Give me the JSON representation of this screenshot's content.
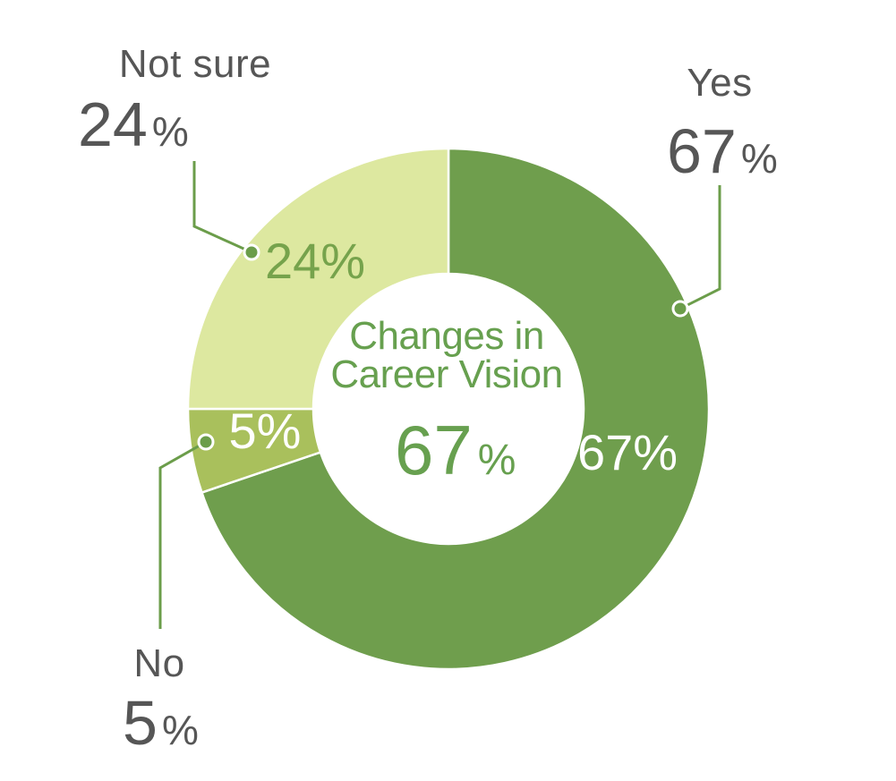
{
  "chart_data": {
    "type": "pie",
    "subtype": "donut",
    "title": "Changes in Career Vision",
    "categories": [
      "Yes",
      "No",
      "Not sure"
    ],
    "values": [
      67,
      5,
      24
    ],
    "unit": "%",
    "colors": [
      "#6f9e4d",
      "#a9c05c",
      "#dde8a0"
    ],
    "start_angle_deg": 0,
    "direction": "clockwise",
    "values_normalized_to_total": true,
    "legend_position": "none",
    "grid": false,
    "center_label": {
      "line1": "Changes in",
      "line2": "Career Vision",
      "value": 67,
      "unit": "%"
    },
    "slice_inner_labels": [
      "67%",
      "5%",
      "24%"
    ]
  },
  "center": {
    "line1": "Changes in",
    "line2": "Career Vision",
    "value": "67",
    "unit": "%"
  },
  "callouts": {
    "yes": {
      "label": "Yes",
      "value": "67",
      "unit": "%"
    },
    "no": {
      "label": "No",
      "value": "5",
      "unit": "%"
    },
    "not_sure": {
      "label": "Not sure",
      "value": "24",
      "unit": "%"
    }
  },
  "slice_labels": {
    "yes": "67%",
    "no": "5%",
    "not_sure": "24%"
  },
  "colors": {
    "yes_slice": "#6f9e4d",
    "no_slice": "#a9c05c",
    "not_sure_slice": "#dde8a0",
    "center_text_green": "#67a04f",
    "inner_label_green": "#76a34c",
    "leader_green": "#6b9d4a",
    "callout_gray": "#565656",
    "slice_separator": "#ffffff"
  }
}
